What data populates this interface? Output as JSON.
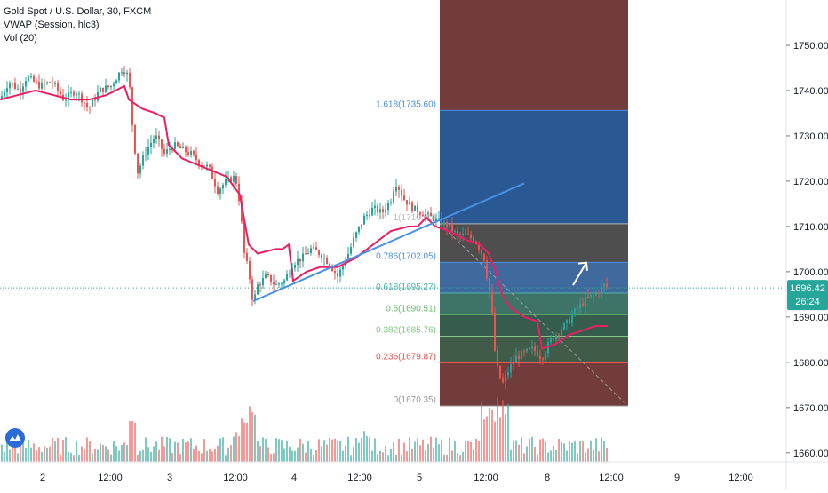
{
  "header": {
    "symbol_line": "Gold Spot / U.S. Dollar, 30, FXCM",
    "indicator_vwap": "VWAP (Session, hlc3)",
    "indicator_vol": "Vol (20)"
  },
  "price_tag": {
    "value": "1696.42",
    "countdown": "26:24",
    "color": "#26a69a"
  },
  "colors": {
    "up": "#26a69a",
    "down": "#ef5350",
    "vwap": "#e91e63",
    "trendline": "#4a90e2",
    "fib_blue": "#1e4f8c",
    "fib_dark_red": "#5b1a1a",
    "fib_gray": "#3b3b3b",
    "fib_green": "#1f4a3a"
  },
  "chart_data": {
    "type": "candlestick",
    "y_axis": {
      "min": 1658,
      "max": 1760,
      "ticks": [
        1660,
        1670,
        1680,
        1690,
        1700,
        1710,
        1720,
        1730,
        1740,
        1750
      ]
    },
    "x_axis": {
      "tick_labels": [
        "2",
        "12:00",
        "3",
        "12:00",
        "4",
        "12:00",
        "5",
        "12:00",
        "8",
        "12:00",
        "9",
        "12:00"
      ]
    },
    "last_price": 1696.42,
    "fib_levels": [
      {
        "ratio": "1.618",
        "price": 1735.6,
        "label": "1.618(1735.60)"
      },
      {
        "ratio": "1",
        "price": 1710.6,
        "label": "1(1710.60)"
      },
      {
        "ratio": "0.786",
        "price": 1702.05,
        "label": "0.786(1702.05)"
      },
      {
        "ratio": "0.618",
        "price": 1695.27,
        "label": "0.618(1695.27)"
      },
      {
        "ratio": "0.5",
        "price": 1690.51,
        "label": "0.5(1690.51)"
      },
      {
        "ratio": "0.382",
        "price": 1685.76,
        "label": "0.382(1685.76)"
      },
      {
        "ratio": "0.236",
        "price": 1679.87,
        "label": "0.236(1679.87)"
      },
      {
        "ratio": "0",
        "price": 1670.35,
        "label": "0(1670.35)"
      }
    ],
    "fib_top_price": 1760,
    "close_path": [
      [
        0,
        1738
      ],
      [
        10,
        1742
      ],
      [
        22,
        1740
      ],
      [
        30,
        1743
      ],
      [
        45,
        1741
      ],
      [
        58,
        1742
      ],
      [
        72,
        1738
      ],
      [
        85,
        1740
      ],
      [
        100,
        1736
      ],
      [
        112,
        1740
      ],
      [
        125,
        1741
      ],
      [
        138,
        1745
      ],
      [
        145,
        1743
      ],
      [
        150,
        1730
      ],
      [
        155,
        1722
      ],
      [
        165,
        1727
      ],
      [
        175,
        1730
      ],
      [
        185,
        1726
      ],
      [
        195,
        1728
      ],
      [
        205,
        1727
      ],
      [
        215,
        1726
      ],
      [
        225,
        1724
      ],
      [
        235,
        1723
      ],
      [
        245,
        1718
      ],
      [
        255,
        1720
      ],
      [
        265,
        1721
      ],
      [
        270,
        1715
      ],
      [
        275,
        1704
      ],
      [
        280,
        1700
      ],
      [
        285,
        1693
      ],
      [
        290,
        1697
      ],
      [
        300,
        1699
      ],
      [
        310,
        1697
      ],
      [
        320,
        1698
      ],
      [
        330,
        1702
      ],
      [
        340,
        1703
      ],
      [
        350,
        1705
      ],
      [
        360,
        1704
      ],
      [
        370,
        1702
      ],
      [
        380,
        1699
      ],
      [
        390,
        1703
      ],
      [
        400,
        1708
      ],
      [
        410,
        1712
      ],
      [
        420,
        1714
      ],
      [
        430,
        1713
      ],
      [
        440,
        1716
      ],
      [
        445,
        1720
      ],
      [
        455,
        1716
      ],
      [
        465,
        1714
      ],
      [
        475,
        1713
      ],
      [
        485,
        1712
      ],
      [
        495,
        1711
      ],
      [
        505,
        1710
      ],
      [
        515,
        1708
      ],
      [
        525,
        1708
      ],
      [
        535,
        1707
      ],
      [
        545,
        1703
      ],
      [
        553,
        1693
      ],
      [
        558,
        1680
      ],
      [
        565,
        1675
      ],
      [
        572,
        1678
      ],
      [
        580,
        1681
      ],
      [
        590,
        1682
      ],
      [
        600,
        1683
      ],
      [
        610,
        1681
      ],
      [
        620,
        1685
      ],
      [
        630,
        1687
      ],
      [
        640,
        1689
      ],
      [
        650,
        1692
      ],
      [
        660,
        1694
      ],
      [
        670,
        1695
      ],
      [
        680,
        1697
      ],
      [
        684,
        1696.42
      ]
    ],
    "vwap_path": [
      [
        0,
        1738
      ],
      [
        20,
        1739
      ],
      [
        40,
        1740
      ],
      [
        60,
        1739
      ],
      [
        80,
        1738
      ],
      [
        100,
        1738
      ],
      [
        120,
        1739
      ],
      [
        140,
        1741
      ],
      [
        145,
        1738
      ],
      [
        160,
        1736
      ],
      [
        175,
        1735
      ],
      [
        185,
        1734
      ],
      [
        190,
        1728
      ],
      [
        205,
        1725
      ],
      [
        230,
        1723
      ],
      [
        255,
        1721
      ],
      [
        270,
        1717
      ],
      [
        280,
        1706
      ],
      [
        290,
        1704
      ],
      [
        310,
        1705
      ],
      [
        318,
        1705
      ],
      [
        325,
        1706
      ],
      [
        330,
        1698
      ],
      [
        345,
        1700
      ],
      [
        360,
        1701
      ],
      [
        380,
        1701
      ],
      [
        400,
        1703
      ],
      [
        420,
        1706
      ],
      [
        440,
        1709
      ],
      [
        460,
        1710
      ],
      [
        470,
        1710
      ],
      [
        480,
        1712
      ],
      [
        490,
        1710
      ],
      [
        505,
        1709
      ],
      [
        525,
        1707
      ],
      [
        540,
        1706
      ],
      [
        550,
        1704
      ],
      [
        558,
        1700
      ],
      [
        565,
        1695
      ],
      [
        575,
        1692
      ],
      [
        590,
        1690
      ],
      [
        605,
        1689
      ],
      [
        610,
        1683
      ],
      [
        625,
        1684
      ],
      [
        640,
        1686
      ],
      [
        655,
        1687
      ],
      [
        670,
        1688
      ],
      [
        684,
        1688
      ]
    ],
    "trendline": {
      "from": [
        285,
        1693.5
      ],
      "to": [
        590,
        1719.5
      ]
    },
    "arrow": {
      "from": [
        645,
        1697
      ],
      "to": [
        660,
        1702
      ]
    },
    "fib_box": {
      "x_start": 495,
      "x_end": 707
    },
    "dashed_diagonal": {
      "from": [
        495,
        1710.6
      ],
      "to": [
        707,
        1670.35
      ]
    },
    "volume_scale_max": 120
  }
}
